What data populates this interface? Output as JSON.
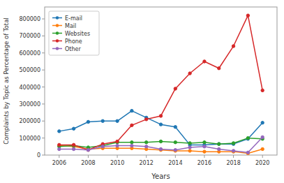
{
  "chart_data": {
    "type": "line",
    "x_label": "Years",
    "y_label": "Complaints by Topic as Percentage of Total",
    "x": [
      2006,
      2007,
      2008,
      2009,
      2010,
      2011,
      2012,
      2013,
      2014,
      2015,
      2016,
      2017,
      2018,
      2019,
      2020
    ],
    "series": [
      {
        "name": "E-mail",
        "color": "#1f77b4",
        "marker": "circle",
        "values": [
          140000,
          155000,
          195000,
          200000,
          200000,
          260000,
          220000,
          180000,
          165000,
          60000,
          60000,
          65000,
          65000,
          95000,
          190000
        ]
      },
      {
        "name": "Mail",
        "color": "#ff7f0e",
        "marker": "circle",
        "values": [
          55000,
          50000,
          35000,
          40000,
          40000,
          40000,
          35000,
          30000,
          25000,
          25000,
          20000,
          20000,
          20000,
          10000,
          35000
        ]
      },
      {
        "name": "Websites",
        "color": "#2ca02c",
        "marker": "circle",
        "values": [
          50000,
          55000,
          45000,
          55000,
          75000,
          75000,
          75000,
          80000,
          75000,
          70000,
          75000,
          65000,
          70000,
          100000,
          95000
        ]
      },
      {
        "name": "Phone",
        "color": "#d62728",
        "marker": "circle",
        "values": [
          60000,
          60000,
          30000,
          65000,
          80000,
          175000,
          210000,
          230000,
          390000,
          480000,
          550000,
          510000,
          640000,
          820000,
          380000
        ]
      },
      {
        "name": "Other",
        "color": "#9467bd",
        "marker": "circle",
        "values": [
          35000,
          35000,
          30000,
          50000,
          55000,
          55000,
          50000,
          35000,
          30000,
          45000,
          50000,
          35000,
          25000,
          15000,
          105000
        ]
      }
    ],
    "xlim": [
      2005,
      2021
    ],
    "xticks": [
      2006,
      2008,
      2010,
      2012,
      2014,
      2016,
      2018,
      2020
    ],
    "ylim": [
      0,
      870000
    ],
    "yticks": [
      0,
      100000,
      200000,
      300000,
      400000,
      500000,
      600000,
      700000,
      800000
    ],
    "grid": false,
    "legend": "upper-left"
  }
}
